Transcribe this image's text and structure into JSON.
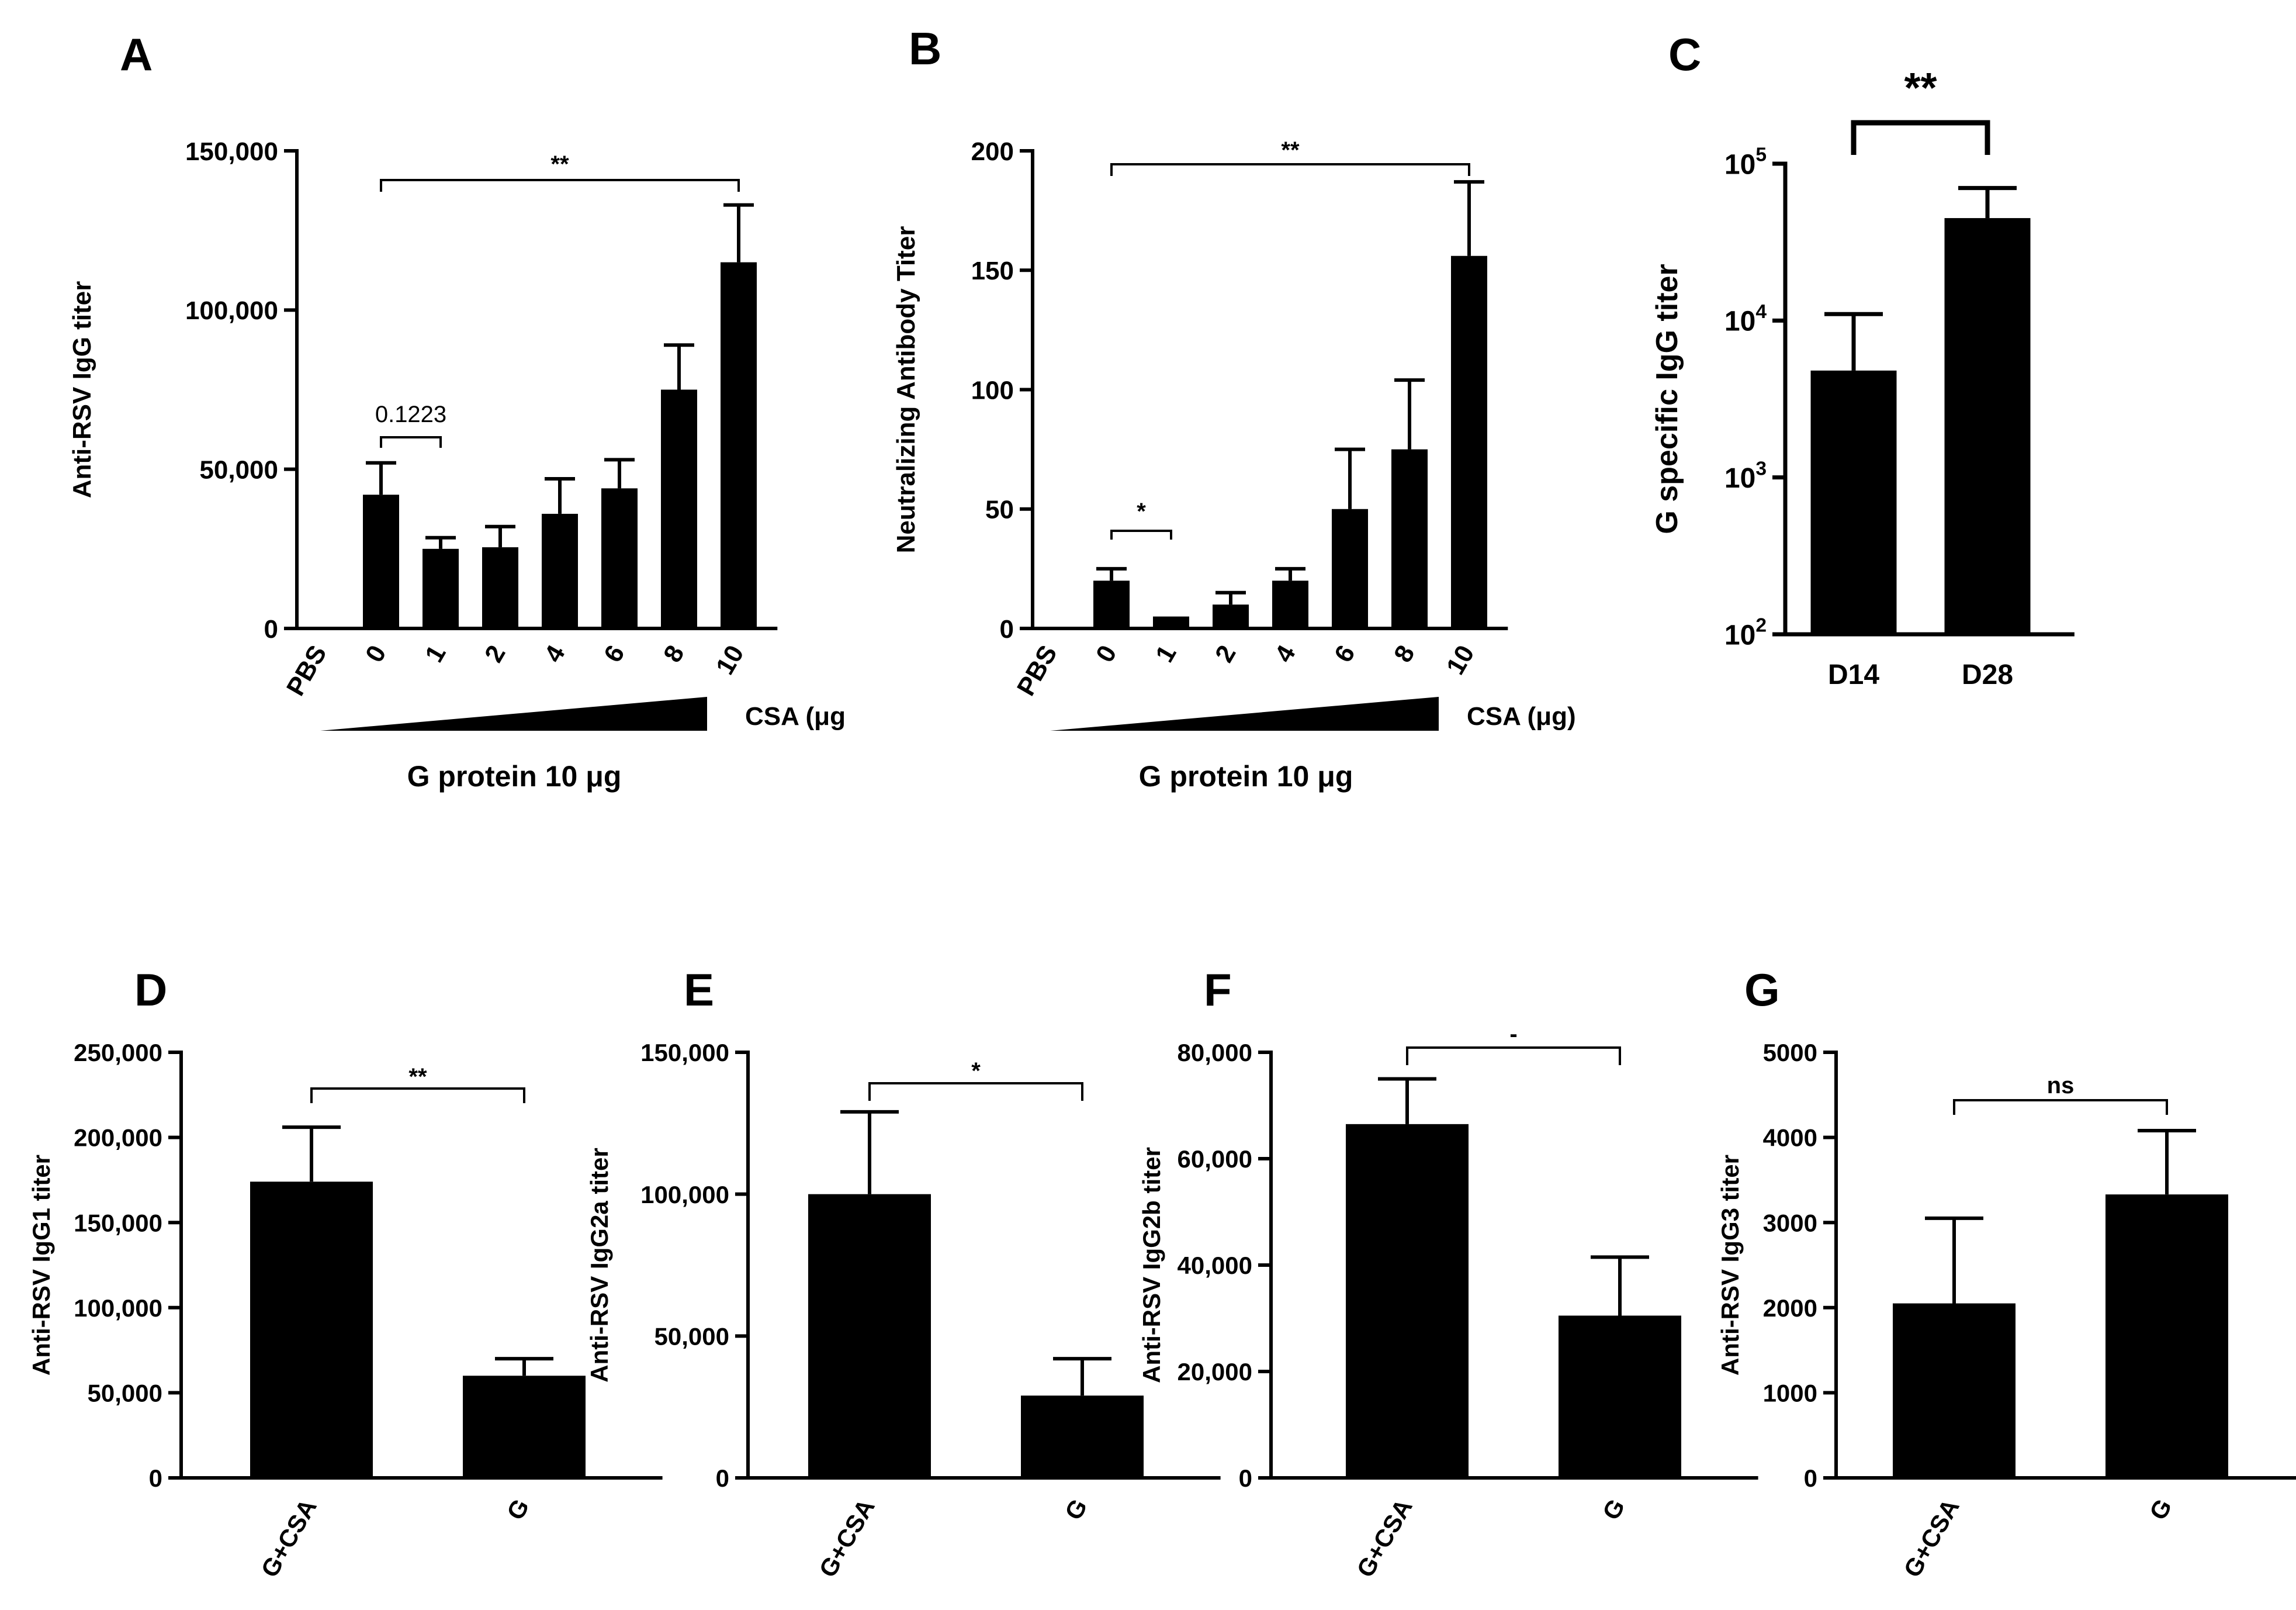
{
  "chart_data": [
    {
      "panel": "A",
      "type": "bar",
      "scale": "linear",
      "ylabel": "Anti-RSV IgG titer",
      "ylim": [
        0,
        150000
      ],
      "yticks": [
        {
          "value": 0,
          "label": "0"
        },
        {
          "value": 50000,
          "label": "50,000"
        },
        {
          "value": 100000,
          "label": "100,000"
        },
        {
          "value": 150000,
          "label": "150,000"
        }
      ],
      "categories": [
        "PBS",
        "0",
        "1",
        "2",
        "4",
        "6",
        "8",
        "10"
      ],
      "values": [
        0,
        42000,
        25000,
        25500,
        36000,
        44000,
        75000,
        115000
      ],
      "errors": [
        0,
        10000,
        3500,
        6500,
        11000,
        9000,
        14000,
        18000
      ],
      "comparisons": [
        {
          "from": 1,
          "to": 7,
          "label": "**"
        },
        {
          "from": 1,
          "to": 2,
          "label": "0.1223"
        }
      ],
      "wedge_label": "CSA (μg",
      "xlabel": "G protein 10 μg"
    },
    {
      "panel": "B",
      "type": "bar",
      "scale": "linear",
      "ylabel": "Neutralizing Antibody Titer",
      "ylim": [
        0,
        200
      ],
      "yticks": [
        {
          "value": 0,
          "label": "0"
        },
        {
          "value": 50,
          "label": "50"
        },
        {
          "value": 100,
          "label": "100"
        },
        {
          "value": 150,
          "label": "150"
        },
        {
          "value": 200,
          "label": "200"
        }
      ],
      "categories": [
        "PBS",
        "0",
        "1",
        "2",
        "4",
        "6",
        "8",
        "10"
      ],
      "values": [
        0,
        20,
        5,
        10,
        20,
        50,
        75,
        156
      ],
      "errors": [
        0,
        5,
        0,
        5,
        5,
        25,
        29,
        31
      ],
      "comparisons": [
        {
          "from": 1,
          "to": 7,
          "label": "**"
        },
        {
          "from": 1,
          "to": 2,
          "label": "*"
        }
      ],
      "wedge_label": "CSA (μg)",
      "xlabel": "G protein 10 μg"
    },
    {
      "panel": "C",
      "type": "bar",
      "scale": "log",
      "ylabel": "G specific IgG titer",
      "ylim": [
        100,
        100000
      ],
      "yticks": [
        {
          "value": 100,
          "base": "10",
          "exp": "2"
        },
        {
          "value": 1000,
          "base": "10",
          "exp": "3"
        },
        {
          "value": 10000,
          "base": "10",
          "exp": "4"
        },
        {
          "value": 100000,
          "base": "10",
          "exp": "5"
        }
      ],
      "categories": [
        "D14",
        "D28"
      ],
      "values": [
        4800,
        45000
      ],
      "error_tops": [
        11000,
        70000
      ],
      "comparisons": [
        {
          "from": 0,
          "to": 1,
          "label": "**"
        }
      ]
    },
    {
      "panel": "D",
      "type": "bar",
      "scale": "linear",
      "ylabel": "Anti-RSV IgG1  titer",
      "ylim": [
        0,
        250000
      ],
      "yticks": [
        {
          "value": 0,
          "label": "0"
        },
        {
          "value": 50000,
          "label": "50,000"
        },
        {
          "value": 100000,
          "label": "100,000"
        },
        {
          "value": 150000,
          "label": "150,000"
        },
        {
          "value": 200000,
          "label": "200,000"
        },
        {
          "value": 250000,
          "label": "250,000"
        }
      ],
      "categories": [
        "G+CSA",
        "G"
      ],
      "values": [
        174000,
        60000
      ],
      "errors": [
        32000,
        10000
      ],
      "comparisons": [
        {
          "from": 0,
          "to": 1,
          "label": "**"
        }
      ]
    },
    {
      "panel": "E",
      "type": "bar",
      "scale": "linear",
      "ylabel": "Anti-RSV IgG2a  titer",
      "ylim": [
        0,
        150000
      ],
      "yticks": [
        {
          "value": 0,
          "label": "0"
        },
        {
          "value": 50000,
          "label": "50,000"
        },
        {
          "value": 100000,
          "label": "100,000"
        },
        {
          "value": 150000,
          "label": "150,000"
        }
      ],
      "categories": [
        "G+CSA",
        "G"
      ],
      "values": [
        100000,
        29000
      ],
      "errors": [
        29000,
        13000
      ],
      "comparisons": [
        {
          "from": 0,
          "to": 1,
          "label": "*"
        }
      ]
    },
    {
      "panel": "F",
      "type": "bar",
      "scale": "linear",
      "ylabel": "Anti-RSV IgG2b  titer",
      "ylim": [
        0,
        80000
      ],
      "yticks": [
        {
          "value": 0,
          "label": "0"
        },
        {
          "value": 20000,
          "label": "20,000"
        },
        {
          "value": 40000,
          "label": "40,000"
        },
        {
          "value": 60000,
          "label": "60,000"
        },
        {
          "value": 80000,
          "label": "80,000"
        }
      ],
      "categories": [
        "G+CSA",
        "G"
      ],
      "values": [
        66500,
        30500
      ],
      "errors": [
        8500,
        11000
      ],
      "comparisons": [
        {
          "from": 0,
          "to": 1,
          "label": "-"
        }
      ]
    },
    {
      "panel": "G",
      "type": "bar",
      "scale": "linear",
      "ylabel": "Anti-RSV IgG3  titer",
      "ylim": [
        0,
        5000
      ],
      "yticks": [
        {
          "value": 0,
          "label": "0"
        },
        {
          "value": 1000,
          "label": "1000"
        },
        {
          "value": 2000,
          "label": "2000"
        },
        {
          "value": 3000,
          "label": "3000"
        },
        {
          "value": 4000,
          "label": "4000"
        },
        {
          "value": 5000,
          "label": "5000"
        }
      ],
      "categories": [
        "G+CSA",
        "G"
      ],
      "values": [
        2050,
        3330
      ],
      "errors": [
        1000,
        750
      ],
      "comparisons": [
        {
          "from": 0,
          "to": 1,
          "label": "ns"
        }
      ]
    }
  ]
}
